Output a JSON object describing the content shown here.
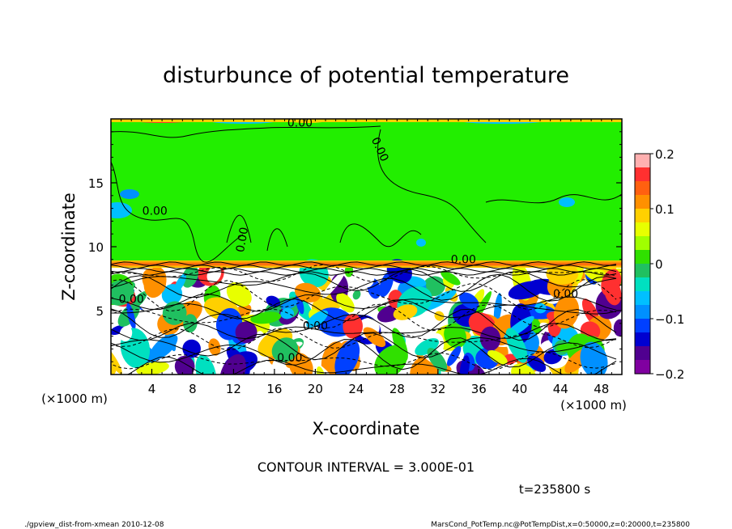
{
  "chart_data": {
    "type": "heatmap",
    "title": "disturbunce of potential temperature",
    "xlabel": "X-coordinate",
    "ylabel": "Z-coordinate",
    "x_unit_label": "(×1000 m)",
    "y_unit_label": "(×1000 m)",
    "xlim": [
      0,
      50
    ],
    "ylim": [
      0,
      20
    ],
    "x_ticks": [
      4,
      8,
      12,
      16,
      20,
      24,
      28,
      32,
      36,
      40,
      44,
      48
    ],
    "y_ticks": [
      5,
      10,
      15
    ],
    "colorbar": {
      "range": [
        -0.2,
        0.2
      ],
      "tick_values": [
        0.2,
        0.1,
        0,
        -0.1,
        -0.2
      ],
      "tick_labels": [
        "0.2",
        "0.1",
        "0",
        "−0.1",
        "−0.2"
      ],
      "colors": [
        "#ffb0b0",
        "#ff3030",
        "#ff6010",
        "#ff9000",
        "#ffd000",
        "#e8ff00",
        "#a0ff00",
        "#30e000",
        "#20c060",
        "#00e0c0",
        "#00c0ff",
        "#0090ff",
        "#0040ff",
        "#0000d0",
        "#500090",
        "#8000a0"
      ]
    },
    "contour_labels": [
      {
        "text": "0.00",
        "x": 18.5,
        "z": 19.4
      },
      {
        "text": "0.00",
        "x": 26.0,
        "z": 17.5,
        "rotate": 65
      },
      {
        "text": "0.00",
        "x": 4.3,
        "z": 12.5
      },
      {
        "text": "0.00",
        "x": 13.2,
        "z": 10.5,
        "rotate": -80
      },
      {
        "text": "0.00",
        "x": 34.5,
        "z": 8.7
      },
      {
        "text": "0.00",
        "x": 2.0,
        "z": 5.6
      },
      {
        "text": "0.00",
        "x": 44.5,
        "z": 6.0
      },
      {
        "text": "0.00",
        "x": 20.0,
        "z": 3.5
      },
      {
        "text": "0.00",
        "x": 17.5,
        "z": 1.0
      }
    ],
    "contour_interval_text": "CONTOUR INTERVAL = 3.000E-01",
    "time_text": "t=235800 s"
  },
  "footer": {
    "left": "./gpview_dist-from-xmean  2010-12-08",
    "right": "MarsCond_PotTemp.nc@PotTempDist,x=0:50000,z=0:20000,t=235800"
  },
  "colors": {
    "upper_green": "#22ee00",
    "surface_band": "#ff7a00",
    "plot_frame": "#000000"
  }
}
